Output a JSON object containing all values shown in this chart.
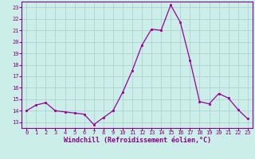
{
  "x": [
    0,
    1,
    2,
    3,
    4,
    5,
    6,
    7,
    8,
    9,
    10,
    11,
    12,
    13,
    14,
    15,
    16,
    17,
    18,
    19,
    20,
    21,
    22,
    23
  ],
  "y": [
    14.0,
    14.5,
    14.7,
    14.0,
    13.9,
    13.8,
    13.7,
    12.8,
    13.4,
    14.0,
    15.6,
    17.5,
    19.7,
    21.1,
    21.0,
    23.2,
    21.7,
    18.4,
    14.8,
    14.6,
    15.5,
    15.1,
    14.1,
    13.3
  ],
  "line_color": "#990099",
  "marker": "s",
  "marker_size": 2,
  "bg_color": "#cceee8",
  "grid_color": "#aacccc",
  "xlabel": "Windchill (Refroidissement éolien,°C)",
  "ylim": [
    12.5,
    23.5
  ],
  "xlim": [
    -0.5,
    23.5
  ],
  "yticks": [
    13,
    14,
    15,
    16,
    17,
    18,
    19,
    20,
    21,
    22,
    23
  ],
  "xticks": [
    0,
    1,
    2,
    3,
    4,
    5,
    6,
    7,
    8,
    9,
    10,
    11,
    12,
    13,
    14,
    15,
    16,
    17,
    18,
    19,
    20,
    21,
    22,
    23
  ],
  "tick_color": "#880088",
  "tick_fontsize": 5.0,
  "xlabel_fontsize": 6.0,
  "line_width": 0.9
}
